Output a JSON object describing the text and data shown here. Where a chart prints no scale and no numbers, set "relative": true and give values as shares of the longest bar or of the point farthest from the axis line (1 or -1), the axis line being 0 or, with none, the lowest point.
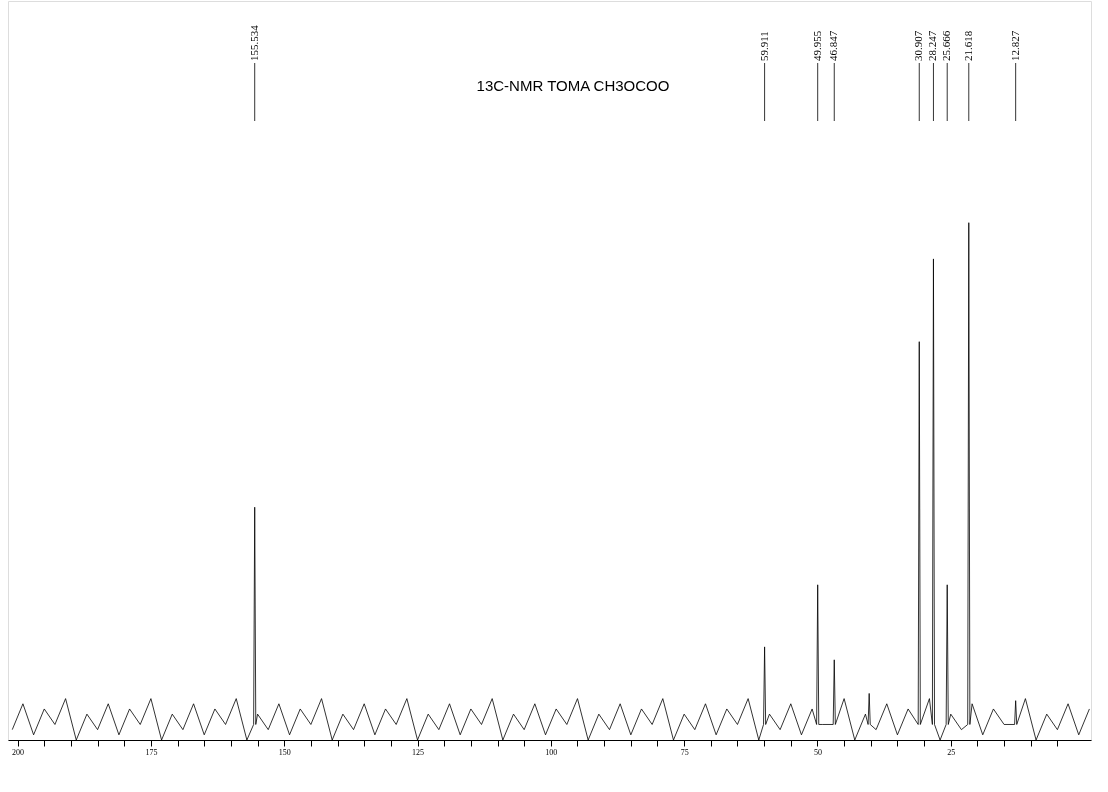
{
  "chart_data": {
    "type": "line",
    "title": "13C-NMR TOMA CH3OCOO",
    "relative": true,
    "grid": false,
    "tick_labels": "x",
    "xlim": [
      201.8,
      -1.3
    ],
    "xticks": [
      200,
      {
        "value": 195,
        "label": null
      },
      {
        "value": 190,
        "label": null
      },
      {
        "value": 185,
        "label": null
      },
      {
        "value": 180,
        "label": null
      },
      175,
      {
        "value": 170,
        "label": null
      },
      {
        "value": 165,
        "label": null
      },
      {
        "value": 160,
        "label": null
      },
      {
        "value": 155,
        "label": null
      },
      150,
      {
        "value": 145,
        "label": null
      },
      {
        "value": 140,
        "label": null
      },
      {
        "value": 135,
        "label": null
      },
      {
        "value": 130,
        "label": null
      },
      125,
      {
        "value": 120,
        "label": null
      },
      {
        "value": 115,
        "label": null
      },
      {
        "value": 110,
        "label": null
      },
      {
        "value": 105,
        "label": null
      },
      100,
      {
        "value": 95,
        "label": null
      },
      {
        "value": 90,
        "label": null
      },
      {
        "value": 85,
        "label": null
      },
      {
        "value": 80,
        "label": null
      },
      75,
      {
        "value": 70,
        "label": null
      },
      {
        "value": 65,
        "label": null
      },
      {
        "value": 60,
        "label": null
      },
      {
        "value": 55,
        "label": null
      },
      50,
      {
        "value": 45,
        "label": null
      },
      {
        "value": 40,
        "label": null
      },
      {
        "value": 35,
        "label": null
      },
      {
        "value": 30,
        "label": null
      },
      25,
      {
        "value": 20,
        "label": null
      },
      {
        "value": 15,
        "label": null
      },
      {
        "value": 10,
        "label": null
      },
      {
        "value": 5,
        "label": null
      }
    ],
    "x": [
      201,
      199,
      197,
      195,
      193,
      191,
      189,
      187,
      185,
      183,
      181,
      179,
      177,
      175,
      173,
      171,
      169,
      167,
      165,
      163,
      161,
      159,
      157,
      155.734,
      155.534,
      155.334,
      155,
      153,
      151,
      149,
      147,
      145,
      143,
      141,
      139,
      137,
      135,
      133,
      131,
      129,
      127,
      125,
      123,
      121,
      119,
      117,
      115,
      113,
      111,
      109,
      107,
      105,
      103,
      101,
      99,
      97,
      95,
      93,
      91,
      89,
      87,
      85,
      83,
      81,
      79,
      77,
      75,
      73,
      71,
      69,
      67,
      65,
      63,
      61,
      60.111,
      59.911,
      59.711,
      59,
      57,
      55,
      53,
      51,
      50.155,
      49.955,
      49.755,
      49,
      47.047,
      46.847,
      46.647,
      45,
      43,
      41,
      40.5,
      40.3,
      40.1,
      39,
      37,
      35,
      33,
      31.107,
      30.907,
      30.707,
      29,
      28.447,
      28.247,
      28.047,
      27,
      25.866,
      25.666,
      25.466,
      25,
      23,
      21.818,
      21.618,
      21.418,
      21,
      19,
      17,
      15,
      13.027,
      12.827,
      12.627,
      11,
      9,
      7,
      5,
      3,
      1,
      -1
    ],
    "series": [
      {
        "color": "#000000",
        "values": [
          0.02,
          0.07,
          0.01,
          0.06,
          0.03,
          0.08,
          0.0,
          0.05,
          0.02,
          0.07,
          0.01,
          0.06,
          0.03,
          0.08,
          0.0,
          0.05,
          0.02,
          0.07,
          0.01,
          0.06,
          0.03,
          0.08,
          0.0,
          0.03,
          0.45,
          0.03,
          0.05,
          0.02,
          0.07,
          0.01,
          0.06,
          0.03,
          0.08,
          0.0,
          0.05,
          0.02,
          0.07,
          0.01,
          0.06,
          0.03,
          0.08,
          0.0,
          0.05,
          0.02,
          0.07,
          0.01,
          0.06,
          0.03,
          0.08,
          0.0,
          0.05,
          0.02,
          0.07,
          0.01,
          0.06,
          0.03,
          0.08,
          0.0,
          0.05,
          0.02,
          0.07,
          0.01,
          0.06,
          0.03,
          0.08,
          0.0,
          0.05,
          0.02,
          0.07,
          0.01,
          0.06,
          0.03,
          0.08,
          0.0,
          0.03,
          0.18,
          0.03,
          0.05,
          0.02,
          0.07,
          0.01,
          0.06,
          0.03,
          0.3,
          0.03,
          0.03,
          0.03,
          0.155,
          0.03,
          0.08,
          0.0,
          0.05,
          0.03,
          0.09,
          0.03,
          0.02,
          0.07,
          0.01,
          0.06,
          0.03,
          0.77,
          0.03,
          0.08,
          0.03,
          0.93,
          0.03,
          0.0,
          0.03,
          0.3,
          0.03,
          0.05,
          0.02,
          0.03,
          1,
          0.03,
          0.07,
          0.01,
          0.06,
          0.03,
          0.03,
          0.076,
          0.03,
          0.08,
          0.0,
          0.05,
          0.02,
          0.07,
          0.01,
          0.06
        ]
      }
    ],
    "annotations": [
      {
        "text": "155.534",
        "x": 155.534
      },
      {
        "text": "59.911",
        "x": 59.911
      },
      {
        "text": "49.955",
        "x": 49.955
      },
      {
        "text": "46.847",
        "x": 46.847
      },
      {
        "text": "30.907",
        "x": 30.907
      },
      {
        "text": "28.247",
        "x": 28.247
      },
      {
        "text": "25.666",
        "x": 25.666
      },
      {
        "text": "21.618",
        "x": 21.618
      },
      {
        "text": "12.827",
        "x": 12.827
      }
    ]
  }
}
